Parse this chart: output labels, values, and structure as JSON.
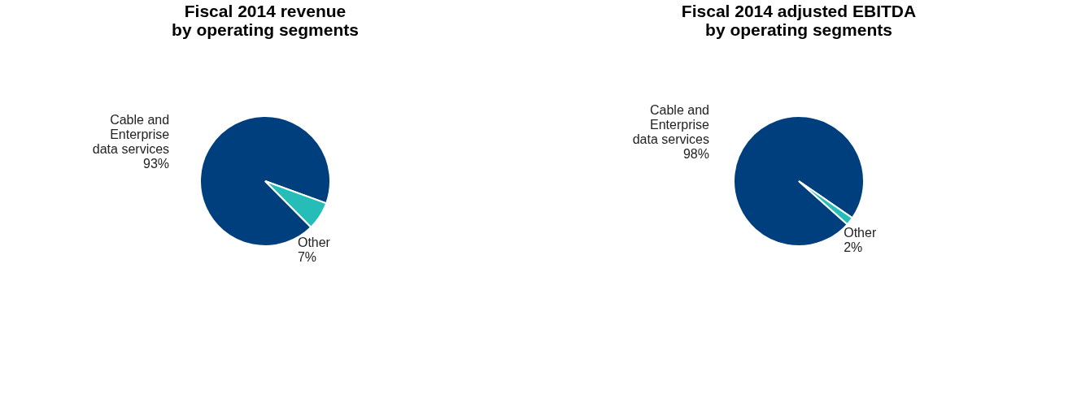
{
  "chart_data": [
    {
      "type": "pie",
      "title": "Fiscal 2014 revenue by operating segments",
      "categories": [
        "Cable and Enterprise data services",
        "Other"
      ],
      "values": [
        93,
        7
      ],
      "colors": [
        "#003f7e",
        "#26bdb8"
      ],
      "value_labels": [
        "93%",
        "7%"
      ],
      "legend": false
    },
    {
      "type": "pie",
      "title": "Fiscal 2014 adjusted EBITDA by operating segments",
      "categories": [
        "Cable and Enterprise data services",
        "Other"
      ],
      "values": [
        98,
        2
      ],
      "colors": [
        "#003f7e",
        "#26bdb8"
      ],
      "value_labels": [
        "98%",
        "2%"
      ],
      "legend": false
    }
  ]
}
